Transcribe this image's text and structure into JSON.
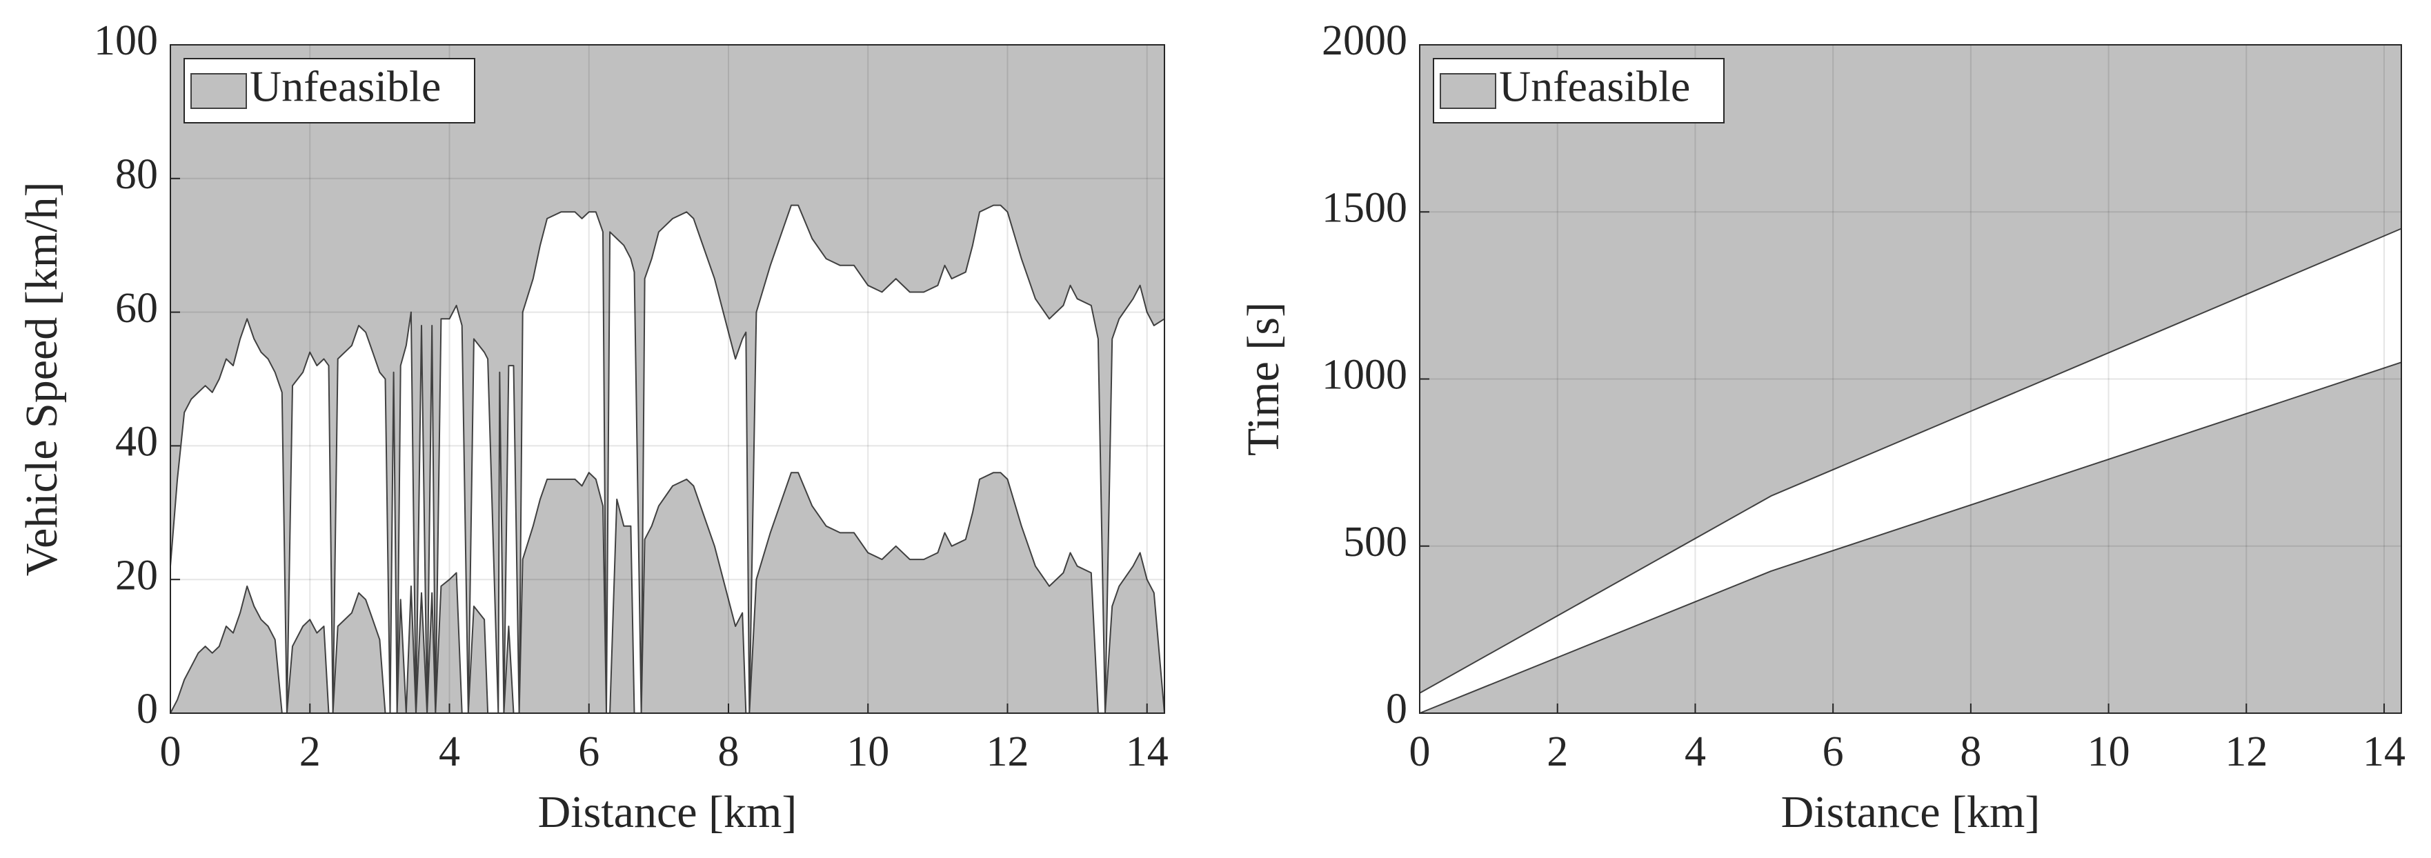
{
  "chart_data": [
    {
      "type": "area",
      "xlabel": "Distance [km]",
      "ylabel": "Vehicle Speed [km/h]",
      "legend": {
        "label": "Unfeasible",
        "loc": "upper left"
      },
      "xlim": [
        0,
        14.25
      ],
      "xticks": [
        0,
        2,
        4,
        6,
        8,
        10,
        12,
        14
      ],
      "ylim": [
        0,
        100
      ],
      "yticks": [
        0,
        20,
        40,
        60,
        80,
        100
      ],
      "grid": true,
      "x": [
        0,
        0.1,
        0.2,
        0.3,
        0.4,
        0.5,
        0.6,
        0.7,
        0.8,
        0.9,
        1.0,
        1.1,
        1.2,
        1.3,
        1.4,
        1.5,
        1.6,
        1.67,
        1.75,
        1.9,
        2.0,
        2.1,
        2.2,
        2.27,
        2.33,
        2.4,
        2.6,
        2.7,
        2.8,
        2.9,
        3.0,
        3.08,
        3.15,
        3.2,
        3.25,
        3.3,
        3.38,
        3.45,
        3.52,
        3.6,
        3.68,
        3.75,
        3.8,
        3.88,
        4.0,
        4.1,
        4.18,
        4.27,
        4.35,
        4.5,
        4.55,
        4.7,
        4.72,
        4.78,
        4.85,
        4.92,
        5.0,
        5.05,
        5.2,
        5.3,
        5.4,
        5.6,
        5.8,
        5.9,
        6.0,
        6.1,
        6.2,
        6.25,
        6.3,
        6.4,
        6.5,
        6.6,
        6.65,
        6.75,
        6.8,
        6.9,
        7.0,
        7.2,
        7.4,
        7.5,
        7.6,
        7.8,
        8.0,
        8.1,
        8.2,
        8.25,
        8.3,
        8.4,
        8.6,
        8.8,
        8.9,
        9.0,
        9.2,
        9.4,
        9.6,
        9.8,
        10.0,
        10.2,
        10.4,
        10.6,
        10.8,
        11.0,
        11.1,
        11.2,
        11.4,
        11.5,
        11.6,
        11.8,
        11.9,
        12.0,
        12.2,
        12.4,
        12.6,
        12.8,
        12.9,
        13.0,
        13.2,
        13.3,
        13.4,
        13.5,
        13.6,
        13.8,
        13.9,
        14.0,
        14.1,
        14.25
      ],
      "series": [
        {
          "region": "above",
          "color": "#404040",
          "fill": "#c0c0c0",
          "values": [
            22,
            35,
            45,
            47,
            48,
            49,
            48,
            50,
            53,
            52,
            56,
            59,
            56,
            54,
            53,
            51,
            48,
            0,
            49,
            51,
            54,
            52,
            53,
            52,
            0,
            53,
            55,
            58,
            57,
            54,
            51,
            50,
            0,
            51,
            0,
            52,
            55,
            60,
            0,
            58,
            0,
            58,
            0,
            59,
            59,
            61,
            58,
            0,
            56,
            54,
            53,
            0,
            51,
            0,
            52,
            52,
            0,
            60,
            65,
            70,
            74,
            75,
            75,
            74,
            75,
            75,
            72,
            0,
            72,
            71,
            70,
            68,
            66,
            0,
            65,
            68,
            72,
            74,
            75,
            74,
            71,
            65,
            57,
            53,
            56,
            57,
            0,
            60,
            67,
            73,
            76,
            76,
            71,
            68,
            67,
            67,
            64,
            63,
            65,
            63,
            63,
            64,
            67,
            65,
            66,
            70,
            75,
            76,
            76,
            75,
            68,
            62,
            59,
            61,
            64,
            62,
            61,
            56,
            0,
            56,
            59,
            62,
            64,
            60,
            58,
            59
          ]
        },
        {
          "region": "below",
          "color": "#404040",
          "fill": "#c0c0c0",
          "values": [
            0,
            2,
            5,
            7,
            9,
            10,
            9,
            10,
            13,
            12,
            15,
            19,
            16,
            14,
            13,
            11,
            0,
            0,
            10,
            13,
            14,
            12,
            13,
            0,
            0,
            13,
            15,
            18,
            17,
            14,
            11,
            0,
            0,
            0,
            0,
            17,
            0,
            19,
            0,
            18,
            0,
            18,
            0,
            19,
            20,
            21,
            0,
            0,
            16,
            14,
            0,
            0,
            0,
            0,
            13,
            0,
            0,
            23,
            28,
            32,
            35,
            35,
            35,
            34,
            36,
            35,
            31,
            0,
            0,
            32,
            28,
            28,
            0,
            0,
            26,
            28,
            31,
            34,
            35,
            34,
            31,
            25,
            17,
            13,
            15,
            0,
            0,
            20,
            27,
            33,
            36,
            36,
            31,
            28,
            27,
            27,
            24,
            23,
            25,
            23,
            23,
            24,
            27,
            25,
            26,
            30,
            35,
            36,
            36,
            35,
            28,
            22,
            19,
            21,
            24,
            22,
            21,
            0,
            0,
            16,
            19,
            22,
            24,
            20,
            18,
            0
          ]
        }
      ]
    },
    {
      "type": "area",
      "xlabel": "Distance [km]",
      "ylabel": "Time [s]",
      "legend": {
        "label": "Unfeasible",
        "loc": "upper left"
      },
      "xlim": [
        0,
        14.25
      ],
      "xticks": [
        0,
        2,
        4,
        6,
        8,
        10,
        12,
        14
      ],
      "ylim": [
        0,
        2000
      ],
      "yticks": [
        0,
        500,
        1000,
        1500,
        2000
      ],
      "grid": true,
      "x": [
        0,
        5.1,
        14.25
      ],
      "series": [
        {
          "region": "above",
          "color": "#404040",
          "fill": "#c0c0c0",
          "values": [
            60,
            650,
            1450
          ]
        },
        {
          "region": "below",
          "color": "#404040",
          "fill": "#c0c0c0",
          "values": [
            0,
            425,
            1050
          ]
        }
      ]
    }
  ]
}
